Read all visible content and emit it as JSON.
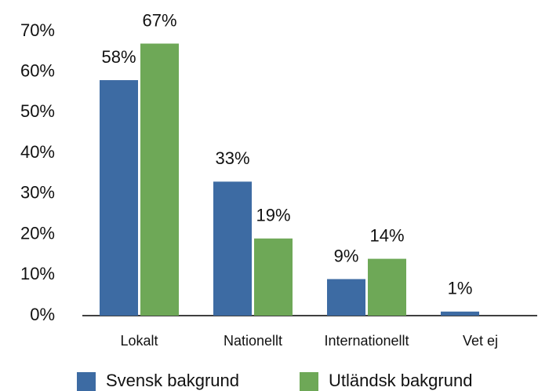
{
  "chart_data": {
    "type": "bar",
    "categories": [
      "Lokalt",
      "Nationellt",
      "Internationellt",
      "Vet ej"
    ],
    "series": [
      {
        "name": "Svensk bakgrund",
        "color": "#3d6ba3",
        "values": [
          58,
          33,
          9,
          1
        ],
        "value_labels": [
          "58%",
          "33%",
          "9%",
          "1%"
        ]
      },
      {
        "name": "Utländsk bakgrund",
        "color": "#6ea857",
        "values": [
          67,
          19,
          14,
          null
        ],
        "value_labels": [
          "67%",
          "19%",
          "14%",
          null
        ]
      }
    ],
    "ylim": [
      0,
      70
    ],
    "yticks": [
      {
        "value": 0,
        "label": "0%"
      },
      {
        "value": 10,
        "label": "10%"
      },
      {
        "value": 20,
        "label": "20%"
      },
      {
        "value": 30,
        "label": "30%"
      },
      {
        "value": 40,
        "label": "40%"
      },
      {
        "value": 50,
        "label": "50%"
      },
      {
        "value": 60,
        "label": "60%"
      },
      {
        "value": 70,
        "label": "70%"
      }
    ],
    "grid": false,
    "legend": "bottom"
  }
}
